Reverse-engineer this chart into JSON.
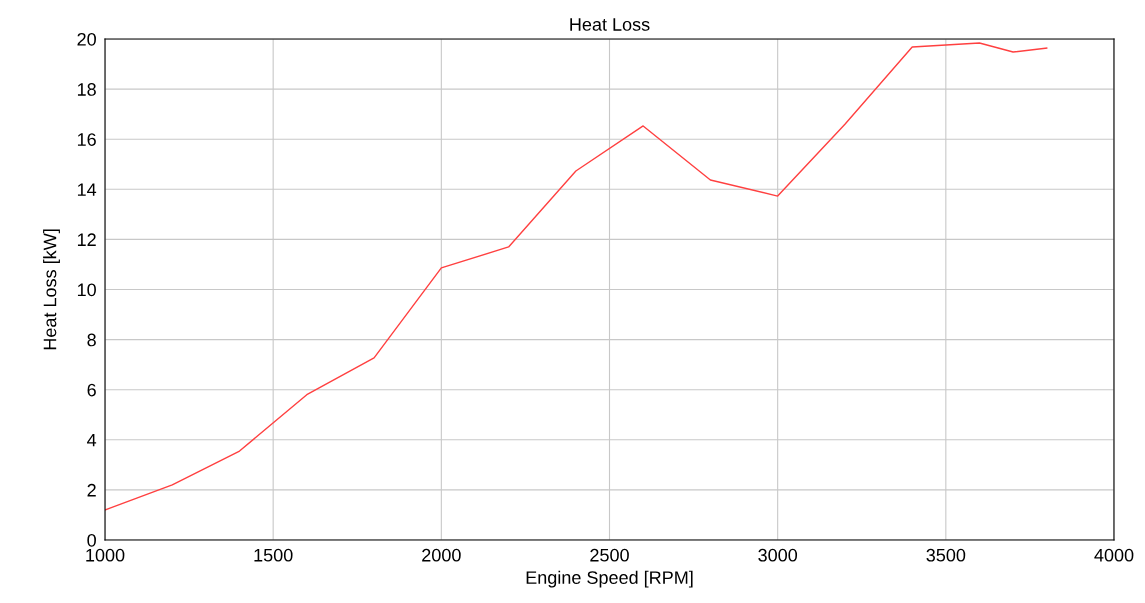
{
  "chart_data": {
    "type": "line",
    "title": "Heat Loss",
    "xlabel": "Engine Speed [RPM]",
    "ylabel": "Heat Loss [kW]",
    "x": [
      1000,
      1200,
      1400,
      1600,
      1800,
      2000,
      2200,
      2400,
      2600,
      2800,
      3000,
      3200,
      3400,
      3600,
      3700,
      3800
    ],
    "series": [
      {
        "color": "#ff4040",
        "values": [
          1.2,
          2.2,
          3.55,
          5.8,
          7.27,
          10.86,
          11.7,
          14.73,
          16.53,
          14.37,
          13.73,
          16.6,
          19.68,
          19.84,
          19.48,
          19.64
        ]
      }
    ],
    "xlim": [
      1000,
      4000
    ],
    "xticks": [
      1000,
      1500,
      2000,
      2500,
      3000,
      3500,
      4000
    ],
    "ylim": [
      0,
      20
    ],
    "yticks": [
      0,
      2,
      4,
      6,
      8,
      10,
      12,
      14,
      16,
      18,
      20
    ],
    "grid": true,
    "marker": "none",
    "line_style": "solid"
  }
}
